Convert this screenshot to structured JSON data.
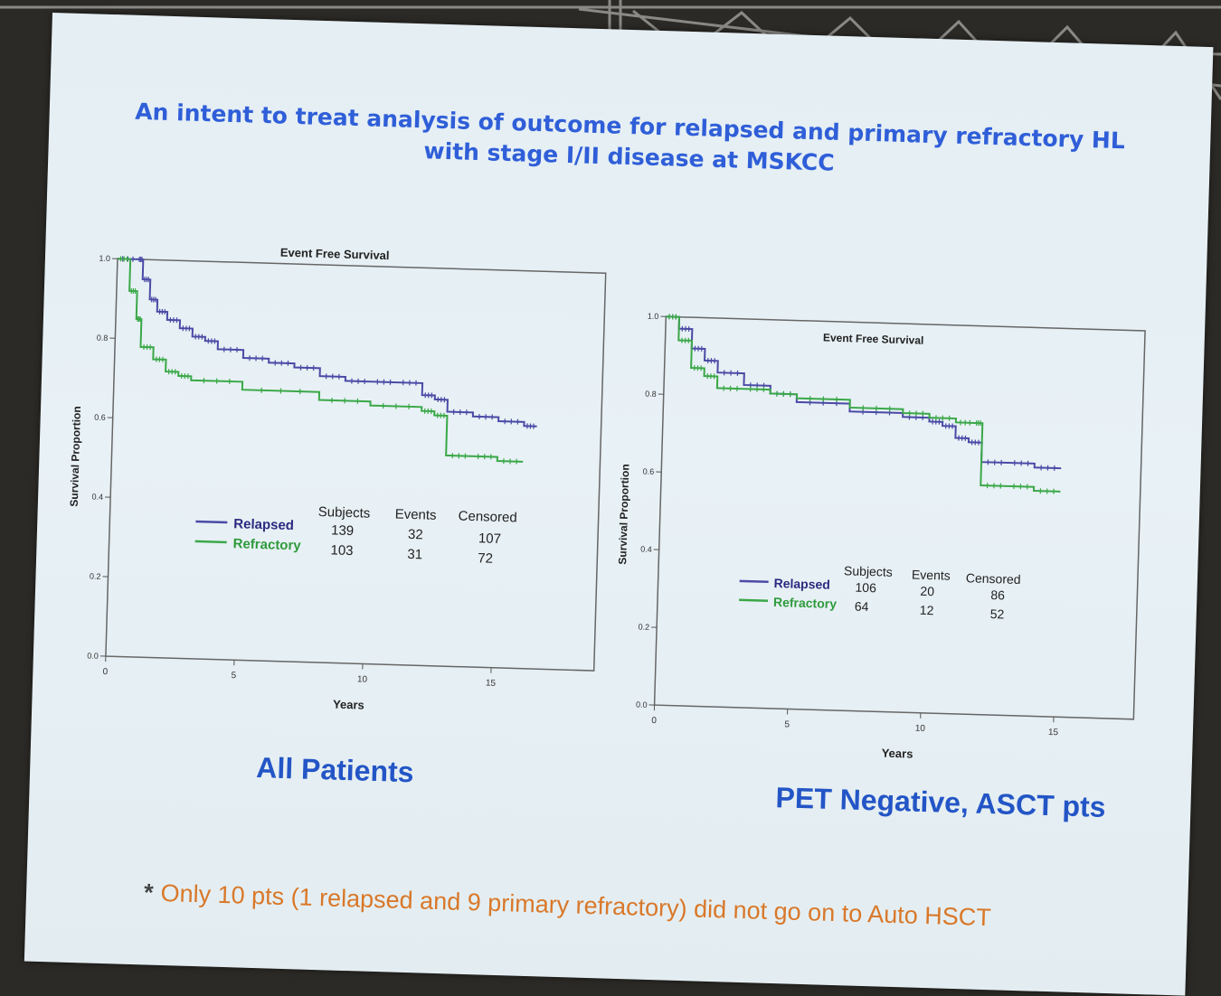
{
  "slide": {
    "title_line1": "An intent to treat analysis of outcome for relapsed and primary refractory HL",
    "title_line2": "with stage I/II disease at MSKCC",
    "caption_left": "All Patients",
    "caption_right": "PET Negative, ASCT pts",
    "footnote_star": "*",
    "footnote": "Only 10 pts (1 relapsed and 9 primary refractory) did not go on to Auto HSCT"
  },
  "colors": {
    "relapsed": "#4a4aa6",
    "refractory": "#3aa848",
    "title": "#2f5ed8",
    "footnote": "#d9782a"
  },
  "chart_data": [
    {
      "type": "line",
      "title": "Event Free Survival",
      "xlabel": "Years",
      "ylabel": "Survival Proportion",
      "xlim": [
        0,
        19
      ],
      "ylim": [
        0,
        1
      ],
      "xticks": [
        0,
        5,
        10,
        15
      ],
      "yticks": [
        0.0,
        0.2,
        0.4,
        0.6,
        0.8,
        1.0
      ],
      "ytick_labels": [
        "0.0",
        "0.2",
        "0.4",
        "0.6",
        "0.8",
        "1.0"
      ],
      "legend_headers": [
        "Subjects",
        "Events",
        "Censored"
      ],
      "series": [
        {
          "name": "Relapsed",
          "subjects": "139",
          "events": "32",
          "censored": "107",
          "x": [
            0,
            0.8,
            1.0,
            1.3,
            1.6,
            2.0,
            2.5,
            3.0,
            3.5,
            4.0,
            5.0,
            6.0,
            7.0,
            8.0,
            9.0,
            10.0,
            11.0,
            12.0,
            12.5,
            13.0,
            14.0,
            15.0,
            16.0,
            16.5
          ],
          "y": [
            1.0,
            1.0,
            0.95,
            0.9,
            0.87,
            0.85,
            0.83,
            0.81,
            0.8,
            0.78,
            0.76,
            0.75,
            0.74,
            0.72,
            0.71,
            0.71,
            0.71,
            0.68,
            0.67,
            0.64,
            0.63,
            0.62,
            0.61,
            0.61
          ]
        },
        {
          "name": "Refractory",
          "subjects": "103",
          "events": "31",
          "censored": "72",
          "x": [
            0,
            0.5,
            0.8,
            1.0,
            1.5,
            2.0,
            2.5,
            3.0,
            5.0,
            8.0,
            10.0,
            12.0,
            12.5,
            13.0,
            14.0,
            15.0,
            16.0
          ],
          "y": [
            1.0,
            0.92,
            0.85,
            0.78,
            0.75,
            0.72,
            0.71,
            0.7,
            0.68,
            0.66,
            0.65,
            0.64,
            0.63,
            0.53,
            0.53,
            0.52,
            0.52
          ]
        }
      ]
    },
    {
      "type": "line",
      "title": "Event Free Survival",
      "xlabel": "Years",
      "ylabel": "Survival Proportion",
      "xlim": [
        0,
        18
      ],
      "ylim": [
        0,
        1
      ],
      "xticks": [
        0,
        5,
        10,
        15
      ],
      "yticks": [
        0.0,
        0.2,
        0.4,
        0.6,
        0.8,
        1.0
      ],
      "ytick_labels": [
        "0.0",
        "0.2",
        "0.4",
        "0.6",
        "0.8",
        "1.0"
      ],
      "legend_headers": [
        "Subjects",
        "Events",
        "Censored"
      ],
      "series": [
        {
          "name": "Relapsed",
          "subjects": "106",
          "events": "20",
          "censored": "86",
          "x": [
            0,
            0.5,
            1.0,
            1.5,
            2.0,
            3.0,
            4.0,
            5.0,
            7.0,
            9.0,
            10.0,
            10.5,
            11.0,
            11.5,
            12.0,
            13.0,
            14.0,
            15.0
          ],
          "y": [
            1.0,
            0.97,
            0.92,
            0.89,
            0.86,
            0.83,
            0.81,
            0.79,
            0.77,
            0.76,
            0.75,
            0.74,
            0.71,
            0.7,
            0.65,
            0.65,
            0.64,
            0.64
          ]
        },
        {
          "name": "Refractory",
          "subjects": "64",
          "events": "12",
          "censored": "52",
          "x": [
            0,
            0.5,
            1.0,
            1.5,
            2.0,
            3.0,
            4.0,
            5.0,
            7.0,
            9.0,
            10.0,
            11.0,
            11.7,
            12.0,
            13.0,
            14.0,
            15.0
          ],
          "y": [
            1.0,
            0.94,
            0.87,
            0.85,
            0.82,
            0.82,
            0.81,
            0.8,
            0.78,
            0.77,
            0.76,
            0.75,
            0.75,
            0.59,
            0.59,
            0.58,
            0.58
          ]
        }
      ]
    }
  ]
}
